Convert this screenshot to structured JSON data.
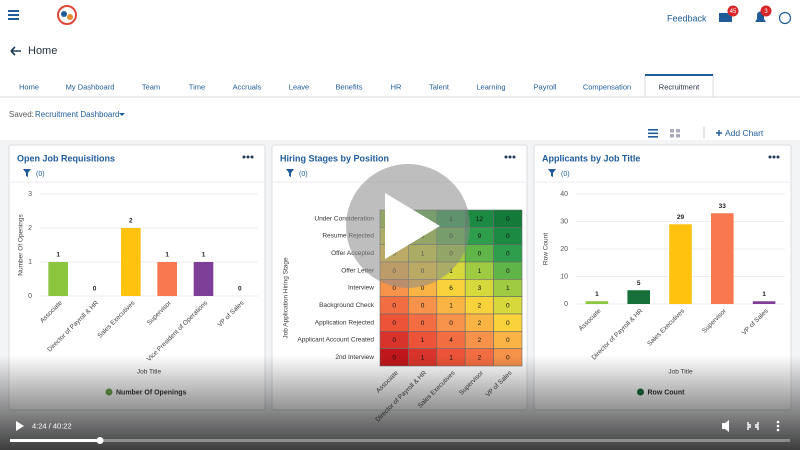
{
  "header": {
    "feedback": "Feedback",
    "mail_badge": 45,
    "alert_badge": 3
  },
  "page_title": "Home",
  "tabs": [
    "Home",
    "My Dashboard",
    "Team",
    "Time",
    "Accruals",
    "Leave",
    "Benefits",
    "HR",
    "Talent",
    "Learning",
    "Payroll",
    "Compensation",
    "Recruitment"
  ],
  "active_tab": "Recruitment",
  "saved_label": "Saved:",
  "saved_view": "Recruitment Dashboard",
  "add_chart": "Add Chart",
  "video": {
    "time": "4:24 / 40:22"
  },
  "chart_data": [
    {
      "type": "bar",
      "title": "Open Job Requisitions",
      "filter_label": "(0)",
      "categories": [
        "Associate",
        "Director of Payroll & HR",
        "Sales Executives",
        "Supervisor",
        "Vice President of Operations",
        "VP of Sales"
      ],
      "values": [
        1,
        0,
        2,
        1,
        1,
        0
      ],
      "colors": [
        "#8cc63f",
        "#8cc63f",
        "#ffc20e",
        "#f9784f",
        "#7e3f98",
        "#7e3f98"
      ],
      "ylim": [
        0,
        3
      ],
      "yticks": [
        0,
        1,
        2,
        3
      ],
      "grid": true,
      "y_label": "Number Of Openings",
      "x_label": "Job Title",
      "legend": "Number Of Openings",
      "legend_color": "#6aa84f"
    },
    {
      "type": "heatmap",
      "title": "Hiring Stages by Position",
      "filter_label": "(0)",
      "categories": [
        "Associate",
        "Director of Payroll & HR",
        "Sales Executives",
        "Supervisor",
        "VP of Sales"
      ],
      "rows": [
        "Under Consideration",
        "Resume Rejected",
        "Offer Accepted",
        "Offer Letter",
        "Interview",
        "Background Check",
        "Application Rejected",
        "Applicant Account Created",
        "2nd Interview"
      ],
      "values": [
        [
          0,
          0,
          1,
          12,
          0
        ],
        [
          0,
          0,
          0,
          9,
          0
        ],
        [
          0,
          1,
          0,
          0,
          0
        ],
        [
          0,
          0,
          1,
          1,
          0
        ],
        [
          0,
          0,
          6,
          3,
          1
        ],
        [
          0,
          0,
          1,
          2,
          0
        ],
        [
          0,
          0,
          0,
          2,
          0
        ],
        [
          0,
          1,
          4,
          2,
          0
        ],
        [
          0,
          1,
          1,
          2,
          0
        ]
      ],
      "palette": [
        "#c0171c",
        "#d9342b",
        "#ec5338",
        "#f36d42",
        "#f7924a",
        "#fab444",
        "#f7d23a",
        "#d6d83c",
        "#9fcb42",
        "#5fb548",
        "#2f9e4c",
        "#1c8a42",
        "#137a3a"
      ],
      "y_label": "Job Application Hiring Stage"
    },
    {
      "type": "bar",
      "title": "Applicants by Job Title",
      "filter_label": "(0)",
      "categories": [
        "Associate",
        "Director of Payroll & HR",
        "Sales Executives",
        "Supervisor",
        "VP of Sales"
      ],
      "values": [
        1,
        5,
        29,
        33,
        1
      ],
      "colors": [
        "#8cc63f",
        "#15703a",
        "#ffc20e",
        "#f9784f",
        "#7e3f98"
      ],
      "ylim": [
        0,
        40
      ],
      "yticks": [
        0,
        10,
        20,
        30,
        40
      ],
      "grid": true,
      "y_label": "Row Count",
      "x_label": "Job Title",
      "legend": "Row Count",
      "legend_color": "#15703a"
    }
  ]
}
